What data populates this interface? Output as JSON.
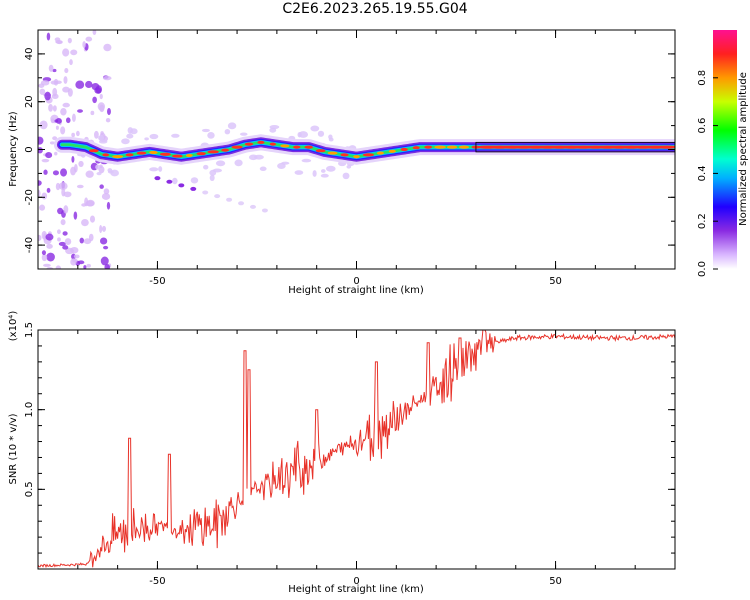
{
  "title": "C2E6.2023.265.19.55.G04",
  "chart_data": [
    {
      "type": "heatmap",
      "xlabel": "Height of straight line (km)",
      "ylabel": "Frequency (Hz)",
      "xlim": [
        -80,
        80
      ],
      "ylim": [
        -50,
        50
      ],
      "xticks": [
        -50,
        0,
        50
      ],
      "yticks": [
        -40,
        -20,
        0,
        20,
        40
      ],
      "colorbar": {
        "label": "Normalized spectral amplitude",
        "ticks": [
          "0.0",
          "0.2",
          "0.4",
          "0.6",
          "0.8"
        ],
        "range": [
          0,
          1
        ]
      },
      "ridge": {
        "description_points_x": [
          -72,
          -68,
          -64,
          -60,
          -56,
          -52,
          -48,
          -44,
          -40,
          -36,
          -32,
          -28,
          -24,
          -20,
          -16,
          -12,
          -8,
          -4,
          0,
          4,
          8,
          12,
          16,
          20,
          30,
          40,
          50,
          60,
          70,
          80
        ],
        "frequency_hz": [
          2,
          1,
          -2,
          -3,
          -2,
          -1,
          -2,
          -3,
          -2,
          -1,
          0,
          2,
          3,
          2,
          1,
          1,
          -1,
          -2,
          -3,
          -2,
          -1,
          0,
          1,
          1,
          1,
          1,
          1,
          1,
          1,
          1
        ]
      }
    },
    {
      "type": "line",
      "xlabel": "Height of straight line (km)",
      "ylabel": "SNR (10 * v/v)",
      "yscale_label": "(x10⁴)",
      "xlim": [
        -80,
        80
      ],
      "ylim": [
        0,
        1.5
      ],
      "xticks": [
        -50,
        0,
        50
      ],
      "yticks": [
        "0.5",
        "1.0",
        "1.5"
      ],
      "color": "#e8332a",
      "trend": {
        "x": [
          -80,
          -68,
          -65,
          -60,
          -55,
          -50,
          -45,
          -40,
          -35,
          -30,
          -25,
          -20,
          -15,
          -10,
          -5,
          0,
          5,
          10,
          15,
          20,
          25,
          30,
          35,
          40,
          50,
          60,
          70,
          80
        ],
        "y": [
          0.02,
          0.03,
          0.12,
          0.22,
          0.26,
          0.27,
          0.25,
          0.26,
          0.3,
          0.42,
          0.5,
          0.56,
          0.62,
          0.68,
          0.74,
          0.8,
          0.86,
          0.95,
          1.04,
          1.14,
          1.26,
          1.36,
          1.42,
          1.45,
          1.46,
          1.45,
          1.45,
          1.46
        ]
      },
      "spikes": [
        {
          "x": -57,
          "y": 0.82
        },
        {
          "x": -47,
          "y": 0.72
        },
        {
          "x": -28,
          "y": 1.37
        },
        {
          "x": -27,
          "y": 1.25
        },
        {
          "x": -10,
          "y": 1.0
        },
        {
          "x": 5,
          "y": 1.3
        },
        {
          "x": 18,
          "y": 1.42
        },
        {
          "x": 26,
          "y": 1.45
        },
        {
          "x": 32,
          "y": 1.5
        }
      ]
    }
  ]
}
